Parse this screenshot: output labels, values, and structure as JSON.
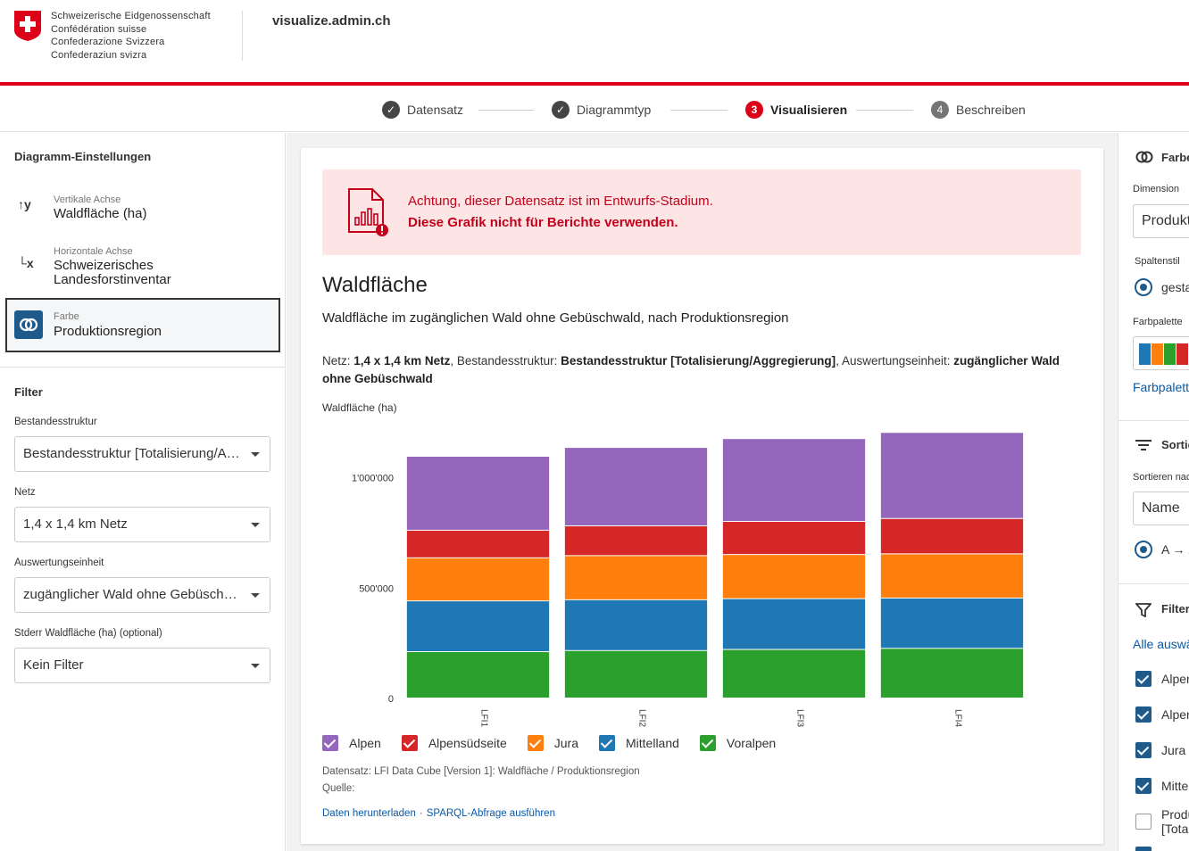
{
  "header": {
    "gov_lines": [
      "Schweizerische Eidgenossenschaft",
      "Confédération suisse",
      "Confederazione Svizzera",
      "Confederaziun svizra"
    ],
    "site_title": "visualize.admin.ch"
  },
  "stepper": {
    "steps": [
      {
        "label": "Datensatz",
        "marker": "✓"
      },
      {
        "label": "Diagrammtyp",
        "marker": "✓"
      },
      {
        "label": "Visualisieren",
        "marker": "3"
      },
      {
        "label": "Beschreiben",
        "marker": "4"
      }
    ]
  },
  "left": {
    "title": "Diagramm-Einstellungen",
    "vertical": {
      "icon_text": "↑y",
      "small": "Vertikale Achse",
      "value": "Waldfläche (ha)"
    },
    "horizontal": {
      "icon_text": "└x",
      "small": "Horizontale Achse",
      "value_line1": "Schweizerisches",
      "value_line2": "Landesforstinventar"
    },
    "color": {
      "small": "Farbe",
      "value": "Produktionsregion"
    },
    "filter_title": "Filter",
    "filters": [
      {
        "label": "Bestandesstruktur",
        "value": "Bestandesstruktur [Totalisierung/Aggregierung]"
      },
      {
        "label": "Netz",
        "value": "1,4 x 1,4 km Netz"
      },
      {
        "label": "Auswertungseinheit",
        "value": "zugänglicher Wald ohne Gebüschwald"
      },
      {
        "label": "Stderr Waldfläche (ha) (optional)",
        "value": "Kein Filter"
      }
    ]
  },
  "card": {
    "warning_line1": "Achtung, dieser Datensatz ist im Entwurfs-Stadium.",
    "warning_line2": "Diese Grafik nicht für Berichte verwenden.",
    "title": "Waldfläche",
    "subtitle": "Waldfläche im zugänglichen Wald ohne Gebüschwald, nach Produktionsregion",
    "filter_desc": {
      "k1": "Netz: ",
      "v1": "1,4 x 1,4 km Netz",
      "k2": ", Bestandesstruktur: ",
      "v2": "Bestandesstruktur [Totalisierung/Aggregierung]",
      "k3": ", Auswertungseinheit: ",
      "v3": "zugänglicher Wald ohne Gebüschwald"
    },
    "source_dataset": "Datensatz: LFI Data Cube [Version 1]: Waldfläche / Produktionsregion",
    "source_quelle": "Quelle:",
    "link_download": "Daten herunterladen",
    "link_sep": "·",
    "link_sparql": "SPARQL-Abfrage ausführen"
  },
  "chart_data": {
    "type": "bar",
    "stacked": true,
    "ylabel": "Waldfläche (ha)",
    "ylim": [
      0,
      1200000
    ],
    "yticks": [
      {
        "value": 0,
        "label": "0"
      },
      {
        "value": 500000,
        "label": "500'000"
      },
      {
        "value": 1000000,
        "label": "1'000'000"
      }
    ],
    "categories": [
      "LFI1",
      "LFI2",
      "LFI3",
      "LFI4"
    ],
    "series": [
      {
        "name": "Voralpen",
        "color": "#2ca02c",
        "values": [
          210000,
          215000,
          220000,
          225000
        ]
      },
      {
        "name": "Mittelland",
        "color": "#1f77b4",
        "values": [
          230000,
          230000,
          230000,
          228000
        ]
      },
      {
        "name": "Jura",
        "color": "#ff7f0e",
        "values": [
          195000,
          200000,
          200000,
          200000
        ]
      },
      {
        "name": "Alpensüdseite",
        "color": "#d62728",
        "values": [
          125000,
          135000,
          150000,
          160000
        ]
      },
      {
        "name": "Alpen",
        "color": "#9467bd",
        "values": [
          335000,
          355000,
          375000,
          390000
        ]
      }
    ],
    "legend_order": [
      "Alpen",
      "Alpensüdseite",
      "Jura",
      "Mittelland",
      "Voralpen"
    ],
    "legend_placement": "bottom-left",
    "grid": false
  },
  "right": {
    "farbe_head": "Farbe",
    "dimension_label": "Dimension",
    "dimension_value": "Produktionsregion",
    "spaltenstil_label": "Spaltenstil",
    "spaltenstil_value": "gestapelt",
    "palette_label": "Farbpalette",
    "palette_colors": [
      "#1f77b4",
      "#ff7f0e",
      "#2ca02c",
      "#d62728"
    ],
    "palette_link": "Farbpalette zurücksetzen",
    "sort_head": "Sortieren",
    "sort_label": "Sortieren nach",
    "sort_value": "Name",
    "sort_dir": "A → Z",
    "filter_head": "Filter",
    "filter_all": "Alle auswählen",
    "filter_items": [
      {
        "label": "Alpen",
        "checked": true
      },
      {
        "label": "Alpensüdseite",
        "checked": true
      },
      {
        "label": "Jura",
        "checked": true
      },
      {
        "label": "Mittelland",
        "checked": true
      },
      {
        "label_line1": "Produktionsregion",
        "label_line2": "[Totalisierung]",
        "checked": false
      }
    ]
  }
}
